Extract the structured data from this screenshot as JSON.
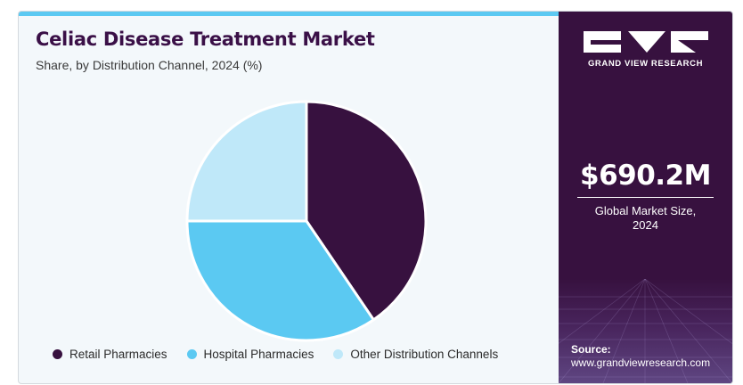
{
  "header": {
    "title": "Celiac Disease Treatment Market",
    "subtitle": "Share, by Distribution Channel, 2024 (%)"
  },
  "chart_data": {
    "type": "pie",
    "title": "Celiac Disease Treatment Market",
    "subtitle": "Share, by Distribution Channel, 2024 (%)",
    "categories": [
      "Retail Pharmacies",
      "Hospital Pharmacies",
      "Other Distribution Channels"
    ],
    "values": [
      40.5,
      34.5,
      25.0
    ],
    "colors": [
      "#37113f",
      "#5bc9f2",
      "#bfe8f9"
    ],
    "start_angle_deg": 0,
    "direction": "clockwise",
    "legend_position": "bottom"
  },
  "legend": {
    "items": [
      {
        "label": "Retail Pharmacies",
        "color": "#37113f"
      },
      {
        "label": "Hospital Pharmacies",
        "color": "#5bc9f2"
      },
      {
        "label": "Other Distribution Channels",
        "color": "#bfe8f9"
      }
    ]
  },
  "sidebar": {
    "logo_text": "GRAND VIEW RESEARCH",
    "logo_icon": "gvr-logo-icon",
    "market_value": "$690.2M",
    "market_label_line1": "Global Market Size,",
    "market_label_line2": "2024",
    "source_label": "Source:",
    "source_url": "www.grandviewresearch.com",
    "background_color": "#37113f"
  }
}
